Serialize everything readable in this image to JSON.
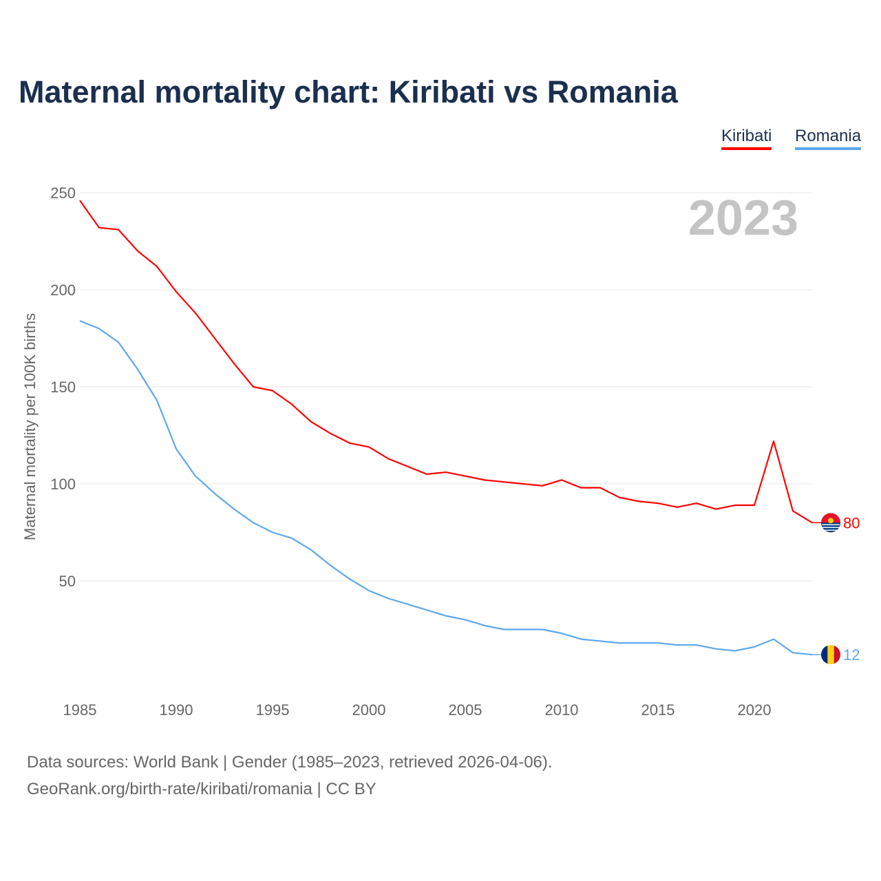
{
  "title": "Maternal mortality chart: Kiribati vs Romania",
  "legend": [
    "Kiribati",
    "Romania"
  ],
  "source_line1": "Data sources: World Bank | Gender (1985–2023, retrieved 2026-04-06).",
  "source_line2": "GeoRank.org/birth-rate/kiribati/romania | CC BY",
  "chart_data": {
    "type": "line",
    "title": "Maternal mortality chart: Kiribati vs Romania",
    "ylabel": "Maternal mortality per 100K births",
    "xlabel": "",
    "year_watermark": "2023",
    "xlim": [
      1985,
      2023
    ],
    "ylim": [
      0,
      250
    ],
    "xticks": [
      1985,
      1990,
      1995,
      2000,
      2005,
      2010,
      2015,
      2020
    ],
    "yticks": [
      50,
      100,
      150,
      200,
      250
    ],
    "legend_position": "top-right",
    "x": [
      1985,
      1986,
      1987,
      1988,
      1989,
      1990,
      1991,
      1992,
      1993,
      1994,
      1995,
      1996,
      1997,
      1998,
      1999,
      2000,
      2001,
      2002,
      2003,
      2004,
      2005,
      2006,
      2007,
      2008,
      2009,
      2010,
      2011,
      2012,
      2013,
      2014,
      2015,
      2016,
      2017,
      2018,
      2019,
      2020,
      2021,
      2022,
      2023
    ],
    "series": [
      {
        "name": "Kiribati",
        "color": "#ff0000",
        "end_label": "80",
        "values": [
          246,
          232,
          231,
          220,
          212,
          199,
          188,
          175,
          162,
          150,
          148,
          141,
          132,
          126,
          121,
          119,
          113,
          109,
          105,
          106,
          104,
          102,
          101,
          100,
          99,
          102,
          98,
          98,
          93,
          91,
          90,
          88,
          90,
          87,
          89,
          89,
          122,
          86,
          80
        ]
      },
      {
        "name": "Romania",
        "color": "#5ea7ee",
        "end_label": "12",
        "values": [
          184,
          180,
          173,
          159,
          143,
          118,
          104,
          95,
          87,
          80,
          75,
          72,
          66,
          58,
          51,
          45,
          41,
          38,
          35,
          32,
          30,
          27,
          25,
          25,
          25,
          23,
          20,
          19,
          18,
          18,
          18,
          17,
          17,
          15,
          14,
          16,
          20,
          13,
          12
        ]
      }
    ]
  }
}
